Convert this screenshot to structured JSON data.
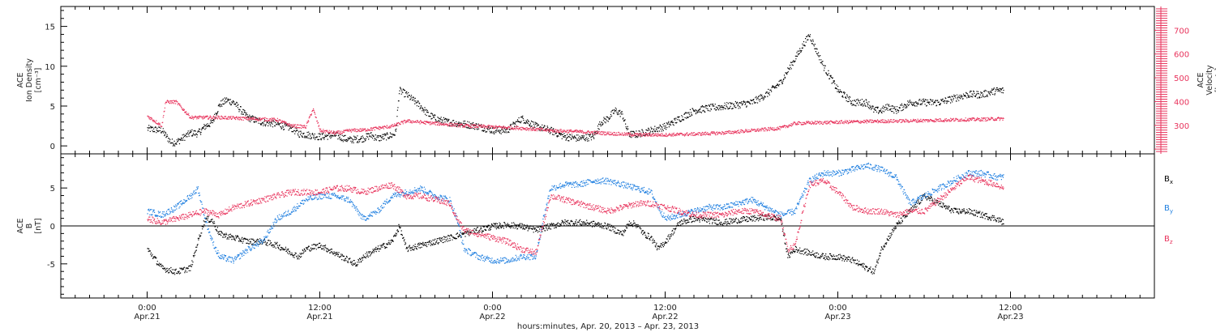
{
  "chart_data": [
    {
      "type": "scatter",
      "panel": "top",
      "ylabel_lines": [
        "ACE",
        "Ion Density",
        "[cm⁻³]"
      ],
      "y2label_lines": [
        "ACE",
        "Velocity",
        "[km/s]"
      ],
      "ylim": [
        -1,
        17.5
      ],
      "yticks": [
        0,
        5,
        10,
        15
      ],
      "y2lim": [
        180,
        800
      ],
      "y2ticks": [
        300,
        400,
        500,
        600,
        700
      ],
      "grid": false,
      "colors": {
        "density": "#000000",
        "velocity": "#e8335c"
      },
      "series": [
        {
          "key": "density",
          "x": [
            0,
            2,
            3,
            3.3,
            4,
            6,
            7,
            8,
            9,
            10,
            11,
            12,
            13,
            14,
            16,
            18,
            19,
            20,
            21,
            24,
            26,
            28,
            30,
            31,
            32,
            34,
            34.5,
            35,
            36,
            38,
            39,
            40,
            41,
            42,
            44,
            46,
            48,
            50,
            52,
            54,
            56,
            58,
            60,
            62,
            63,
            64,
            65,
            66,
            66.5,
            67,
            68,
            70,
            72,
            74,
            76,
            78,
            80,
            82,
            84,
            86,
            88,
            90,
            92,
            94,
            96,
            98,
            100,
            101,
            102,
            103,
            104,
            106,
            108,
            110,
            112,
            114,
            116,
            118,
            119
          ],
          "y": [
            2.2,
            2.0,
            0.8,
            0.5,
            0.5,
            1.7,
            1.6,
            2.5,
            3.0,
            5.2,
            5.8,
            5.5,
            4.5,
            3.6,
            3.0,
            2.8,
            2.5,
            2.3,
            1.6,
            1.2,
            1.4,
            0.8,
            1.0,
            1.4,
            1.0,
            1.4,
            1.7,
            7.0,
            6.5,
            5.0,
            4.0,
            3.5,
            3.2,
            3.0,
            2.8,
            2.5,
            2.0,
            2.0,
            3.5,
            2.5,
            2.0,
            1.2,
            1.0,
            1.2,
            3.0,
            3.5,
            4.5,
            4.0,
            2.5,
            1.5,
            1.5,
            2.0,
            2.5,
            3.5,
            4.5,
            4.8,
            5.0,
            5.2,
            5.5,
            6.5,
            8.0,
            11.0,
            14.0,
            10.0,
            7.0,
            5.5,
            5.5,
            4.5,
            4.5,
            5.0,
            4.5,
            5.5,
            5.5,
            5.5,
            6.0,
            6.5,
            6.5,
            7.0,
            7.0
          ]
        },
        {
          "key": "velocity",
          "x": [
            0,
            2,
            2.5,
            4,
            6,
            10,
            14,
            18,
            20,
            22,
            23,
            24,
            26,
            27,
            28,
            30,
            32,
            34,
            36,
            40,
            44,
            48,
            52,
            56,
            60,
            64,
            68,
            72,
            76,
            80,
            84,
            88,
            90,
            92,
            96,
            100,
            104,
            108,
            112,
            116,
            119
          ],
          "y": [
            340,
            300,
            400,
            400,
            335,
            335,
            330,
            325,
            300,
            295,
            370,
            280,
            270,
            272,
            280,
            282,
            290,
            298,
            320,
            310,
            300,
            295,
            290,
            280,
            275,
            268,
            262,
            262,
            265,
            270,
            280,
            290,
            310,
            312,
            315,
            318,
            320,
            322,
            325,
            327,
            330
          ]
        }
      ]
    },
    {
      "type": "scatter",
      "panel": "bottom",
      "ylabel_lines": [
        "ACE",
        "B",
        "[nT]"
      ],
      "ylim": [
        -9.5,
        9.5
      ],
      "yticks": [
        -5,
        0,
        5
      ],
      "grid": false,
      "zero_line": true,
      "colors": {
        "bx": "#000000",
        "by": "#1f7fe0",
        "bz": "#e8335c"
      },
      "series": [
        {
          "key": "bx",
          "x": [
            0,
            2,
            4,
            6,
            7,
            8,
            9,
            10,
            12,
            14,
            16,
            18,
            20,
            21,
            22,
            24,
            26,
            28,
            29,
            30,
            32,
            34,
            35,
            36,
            38,
            40,
            42,
            44,
            46,
            48,
            50,
            52,
            54,
            56,
            58,
            60,
            62,
            64,
            66,
            67,
            68,
            69,
            70,
            71,
            72,
            74,
            76,
            78,
            80,
            82,
            84,
            86,
            88,
            89,
            90,
            92,
            94,
            96,
            98,
            100,
            101,
            102,
            104,
            106,
            108,
            110,
            112,
            114,
            116,
            118,
            119
          ],
          "y": [
            -3.0,
            -5.5,
            -6.0,
            -5.5,
            -2.0,
            1.0,
            0.8,
            -1.0,
            -1.5,
            -2.0,
            -2.0,
            -2.5,
            -3.5,
            -4.0,
            -3.0,
            -2.5,
            -3.5,
            -4.5,
            -5.0,
            -4.0,
            -3.0,
            -2.0,
            0.0,
            -3.0,
            -2.5,
            -2.0,
            -1.5,
            -1.0,
            -0.5,
            0.0,
            0.2,
            0.0,
            -0.5,
            0.0,
            0.5,
            0.5,
            0.3,
            0.0,
            -1.0,
            0.5,
            0.2,
            -1.0,
            -1.5,
            -3.0,
            -2.0,
            0.5,
            1.0,
            0.8,
            0.5,
            0.8,
            1.0,
            1.2,
            1.0,
            -4.0,
            -3.0,
            -3.5,
            -4.0,
            -4.0,
            -4.5,
            -5.5,
            -6.0,
            -3.0,
            0.0,
            2.0,
            4.0,
            3.0,
            2.0,
            2.0,
            1.5,
            1.0,
            0.5
          ]
        },
        {
          "key": "by",
          "x": [
            0,
            2,
            4,
            6,
            7,
            8,
            9,
            10,
            12,
            14,
            16,
            18,
            20,
            22,
            24,
            26,
            28,
            30,
            32,
            34,
            36,
            38,
            40,
            42,
            43,
            44,
            46,
            48,
            50,
            52,
            54,
            55,
            56,
            58,
            60,
            62,
            64,
            66,
            68,
            70,
            71,
            72,
            74,
            76,
            78,
            80,
            82,
            84,
            86,
            88,
            90,
            91,
            92,
            94,
            96,
            98,
            100,
            102,
            104,
            106,
            108,
            110,
            112,
            114,
            116,
            118,
            119
          ],
          "y": [
            2.0,
            1.5,
            2.5,
            4.0,
            5.0,
            1.0,
            -2.0,
            -4.0,
            -4.5,
            -3.0,
            -2.0,
            1.0,
            2.0,
            3.5,
            4.0,
            4.0,
            3.5,
            1.0,
            2.0,
            4.0,
            4.5,
            5.0,
            4.0,
            3.5,
            1.0,
            -3.0,
            -4.0,
            -4.5,
            -4.5,
            -4.0,
            -4.0,
            1.0,
            5.0,
            5.5,
            5.5,
            6.0,
            6.0,
            5.5,
            5.0,
            4.5,
            2.5,
            1.0,
            1.5,
            2.0,
            2.5,
            2.5,
            3.0,
            3.5,
            2.5,
            1.5,
            2.0,
            4.0,
            6.0,
            7.0,
            7.0,
            7.5,
            8.0,
            7.5,
            6.5,
            3.0,
            4.0,
            5.0,
            6.0,
            7.0,
            7.0,
            6.5,
            6.5
          ]
        },
        {
          "key": "bz",
          "x": [
            0,
            2,
            4,
            6,
            8,
            10,
            12,
            14,
            16,
            18,
            20,
            22,
            24,
            26,
            28,
            30,
            32,
            34,
            36,
            38,
            40,
            42,
            43,
            44,
            46,
            48,
            50,
            52,
            54,
            56,
            58,
            60,
            62,
            64,
            66,
            68,
            70,
            72,
            74,
            76,
            78,
            80,
            82,
            84,
            86,
            88,
            89,
            90,
            92,
            94,
            96,
            98,
            100,
            102,
            104,
            106,
            108,
            110,
            112,
            114,
            116,
            118,
            119
          ],
          "y": [
            1.0,
            0.5,
            1.0,
            1.5,
            2.0,
            1.5,
            2.5,
            3.0,
            3.5,
            4.0,
            4.5,
            4.5,
            4.5,
            5.0,
            5.0,
            4.5,
            5.0,
            5.5,
            4.0,
            4.0,
            3.5,
            3.0,
            1.0,
            -0.5,
            -1.0,
            -1.5,
            -2.0,
            -3.0,
            -3.5,
            4.0,
            3.5,
            3.0,
            2.5,
            2.0,
            2.5,
            3.0,
            3.0,
            2.5,
            2.0,
            1.5,
            1.5,
            1.5,
            2.0,
            2.0,
            1.5,
            1.0,
            -3.0,
            -2.5,
            5.5,
            6.0,
            4.5,
            2.5,
            2.0,
            2.0,
            1.5,
            2.0,
            2.0,
            3.5,
            5.0,
            6.5,
            6.0,
            5.5,
            5.0
          ]
        }
      ],
      "legend": [
        {
          "key": "bx",
          "base": "B",
          "sub": "x"
        },
        {
          "key": "by",
          "base": "B",
          "sub": "y"
        },
        {
          "key": "bz",
          "base": "B",
          "sub": "z"
        }
      ]
    }
  ],
  "x_axis": {
    "xlim": [
      -12,
      140
    ],
    "minor_tick_step": 2,
    "major_ticks": [
      {
        "x": 0,
        "time": "0:00",
        "date": "Apr.21"
      },
      {
        "x": 24,
        "time": "12:00",
        "date": "Apr.21"
      },
      {
        "x": 48,
        "time": "0:00",
        "date": "Apr.22"
      },
      {
        "x": 72,
        "time": "12:00",
        "date": "Apr.22"
      },
      {
        "x": 96,
        "time": "0:00",
        "date": "Apr.23"
      },
      {
        "x": 120,
        "time": "12:00",
        "date": "Apr.23"
      }
    ],
    "label": "hours:minutes, Apr. 20, 2013 – Apr. 23, 2013"
  }
}
